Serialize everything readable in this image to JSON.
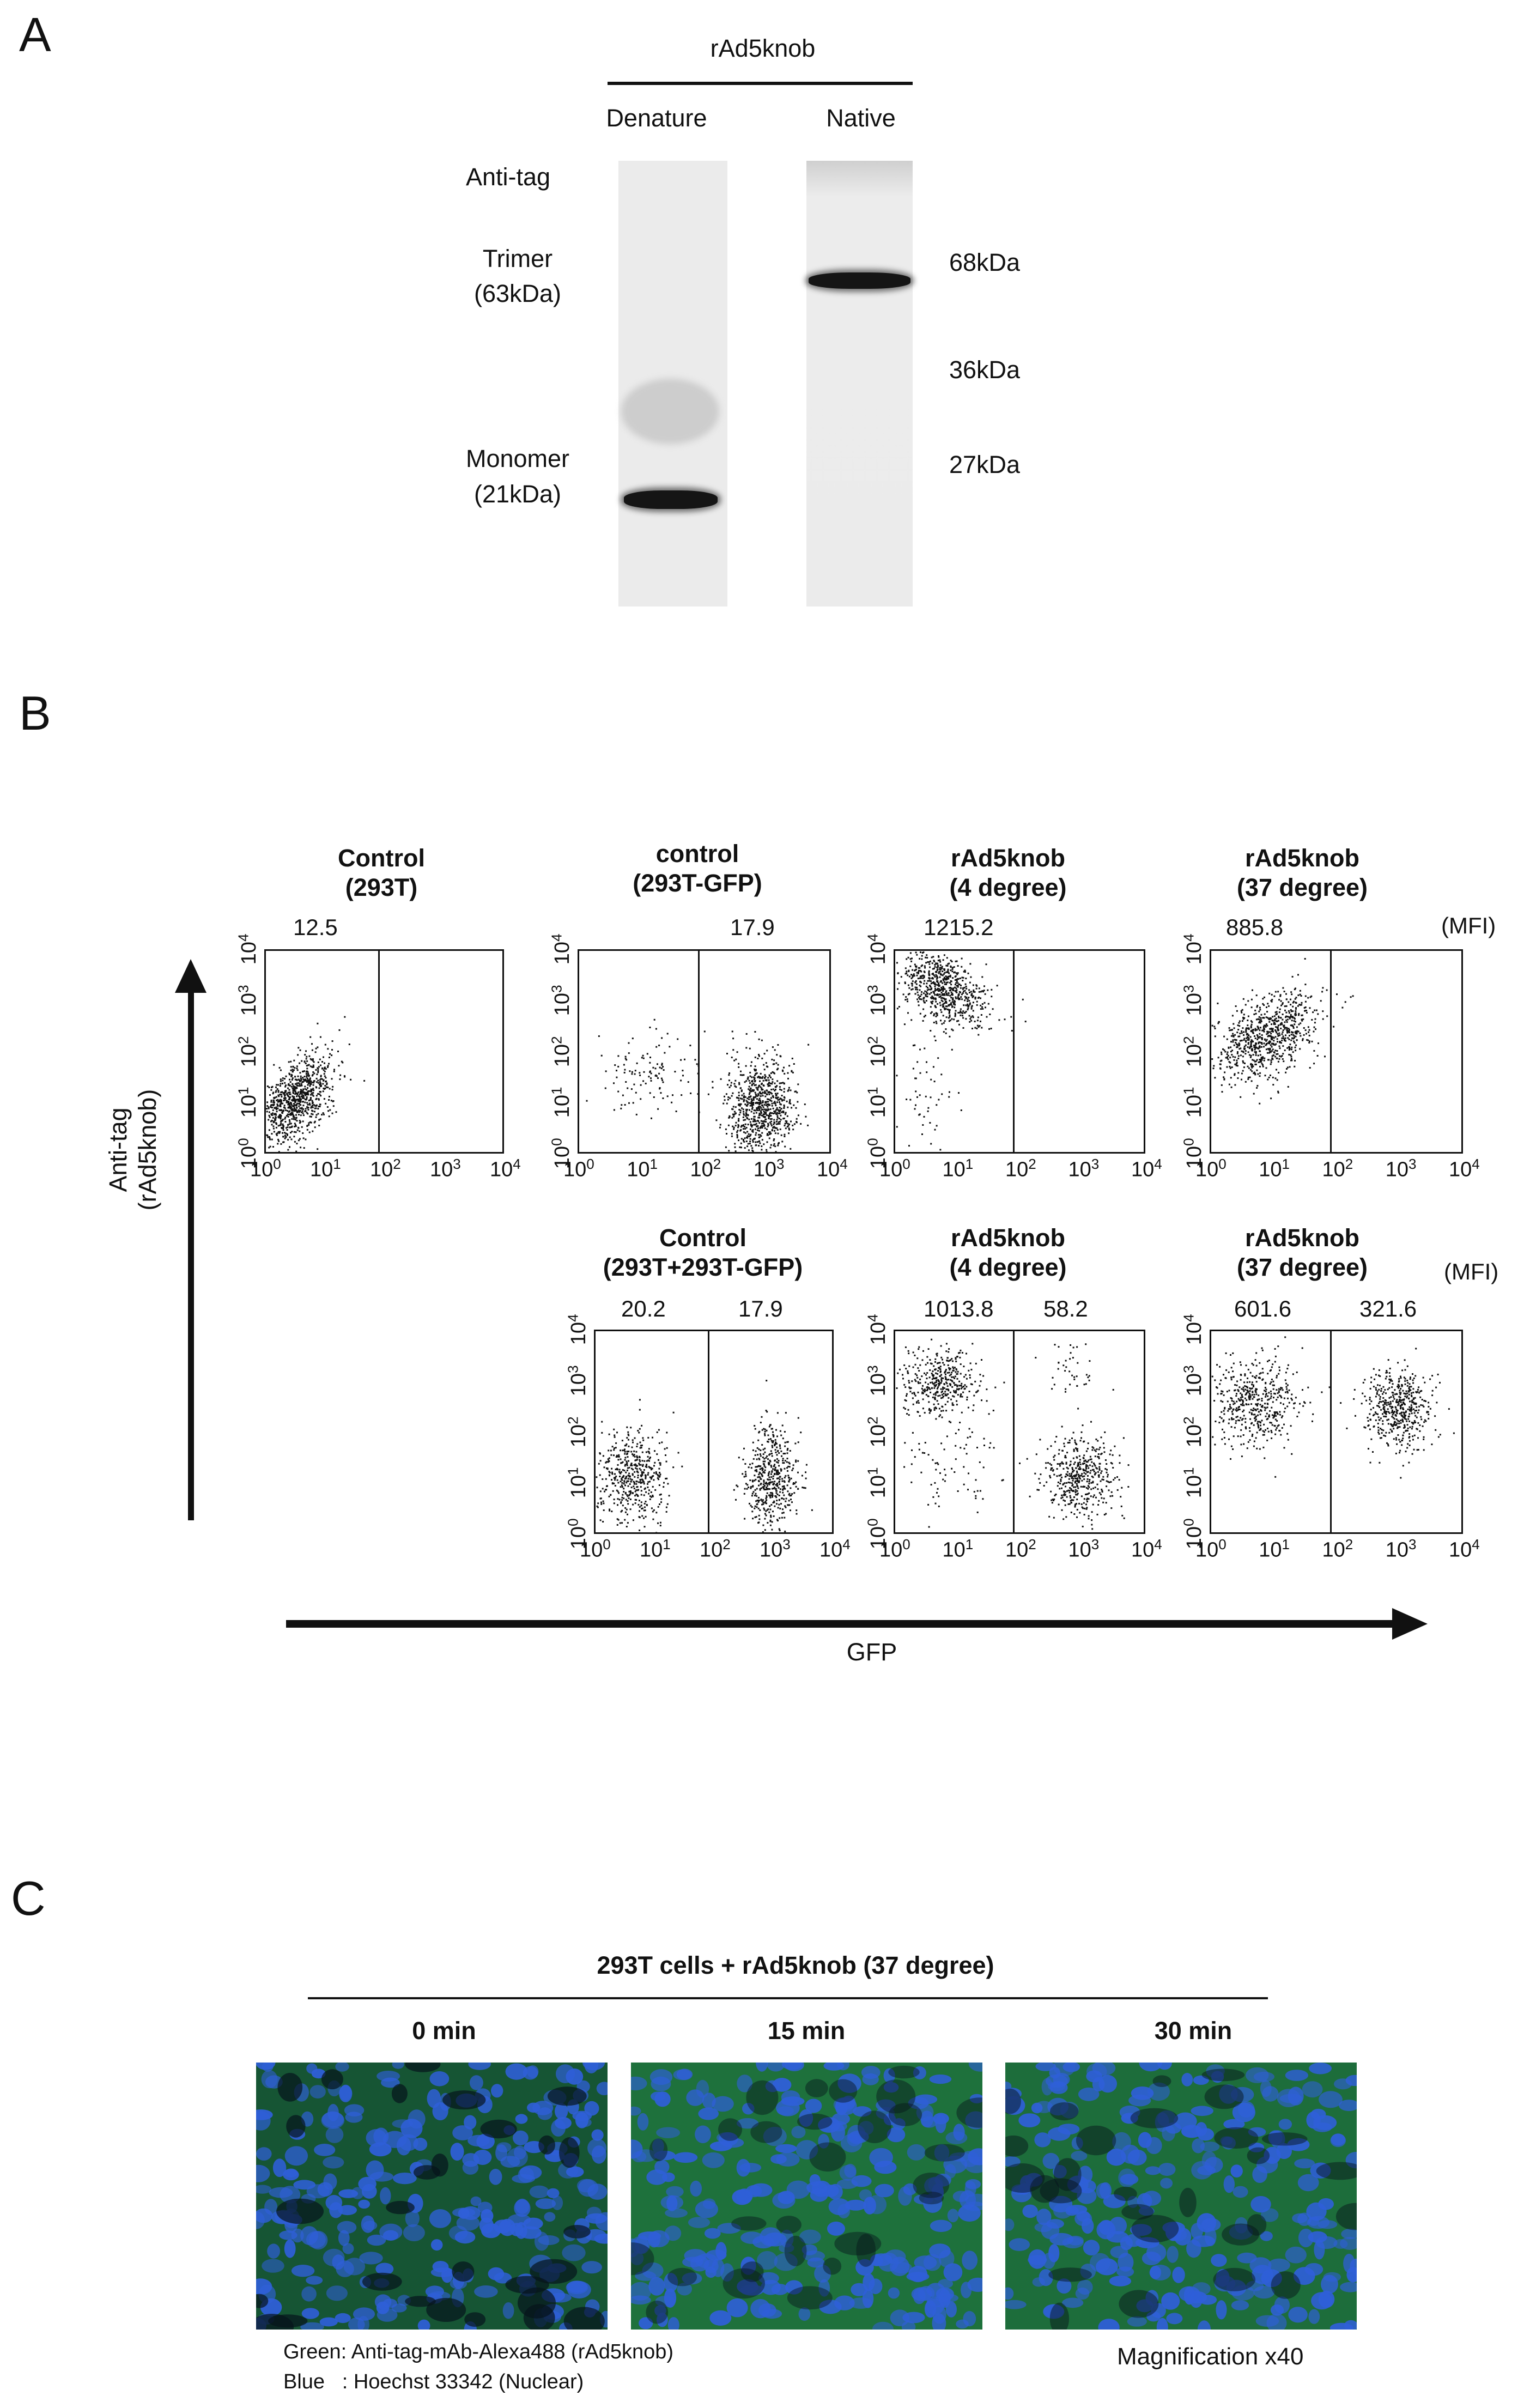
{
  "panels": {
    "a": "A",
    "b": "B",
    "c": "C"
  },
  "panel_a": {
    "header": "rAd5knob",
    "lane_labels": [
      "Denature",
      "Native"
    ],
    "left_labels": {
      "anti_tag": "Anti-tag",
      "trimer": "Trimer",
      "trimer_kda": "(63kDa)",
      "monomer": "Monomer",
      "monomer_kda": "(21kDa)"
    },
    "markers": [
      "68kDa",
      "36kDa",
      "27kDa"
    ]
  },
  "panel_b": {
    "y_axis": {
      "line1": "Anti-tag",
      "line2": "(rAd5knob)"
    },
    "x_axis": "GFP",
    "mfi_label": "(MFI)",
    "tick_base": "10",
    "tick_exps": [
      "0",
      "1",
      "2",
      "3",
      "4"
    ],
    "row1": [
      {
        "title1": "Control",
        "title2": "(293T)",
        "left_value": "12.5",
        "right_value": ""
      },
      {
        "title1": "control",
        "title2": "(293T-GFP)",
        "left_value": "",
        "right_value": "17.9"
      },
      {
        "title1": "rAd5knob",
        "title2": "(4 degree)",
        "left_value": "1215.2",
        "right_value": ""
      },
      {
        "title1": "rAd5knob",
        "title2": "(37 degree)",
        "left_value": "885.8",
        "right_value": ""
      }
    ],
    "row2": [
      {
        "title1": "Control",
        "title2": "(293T+293T-GFP)",
        "left_value": "20.2",
        "right_value": "17.9"
      },
      {
        "title1": "rAd5knob",
        "title2": "(4 degree)",
        "left_value": "1013.8",
        "right_value": "58.2"
      },
      {
        "title1": "rAd5knob",
        "title2": "(37 degree)",
        "left_value": "601.6",
        "right_value": "321.6"
      }
    ]
  },
  "panel_c": {
    "header": "293T cells + rAd5knob (37 degree)",
    "timepoints": [
      "0 min",
      "15 min",
      "30 min"
    ],
    "legend_green": "Green: Anti-tag-mAb-Alexa488 (rAd5knob)",
    "legend_blue": "Blue   : Hoechst 33342 (Nuclear)",
    "magnification": "Magnification x40"
  },
  "colors": {
    "nuclear_blue": "#2f5fd8",
    "alexa_green": "#3ca84a",
    "ink": "#111111"
  }
}
